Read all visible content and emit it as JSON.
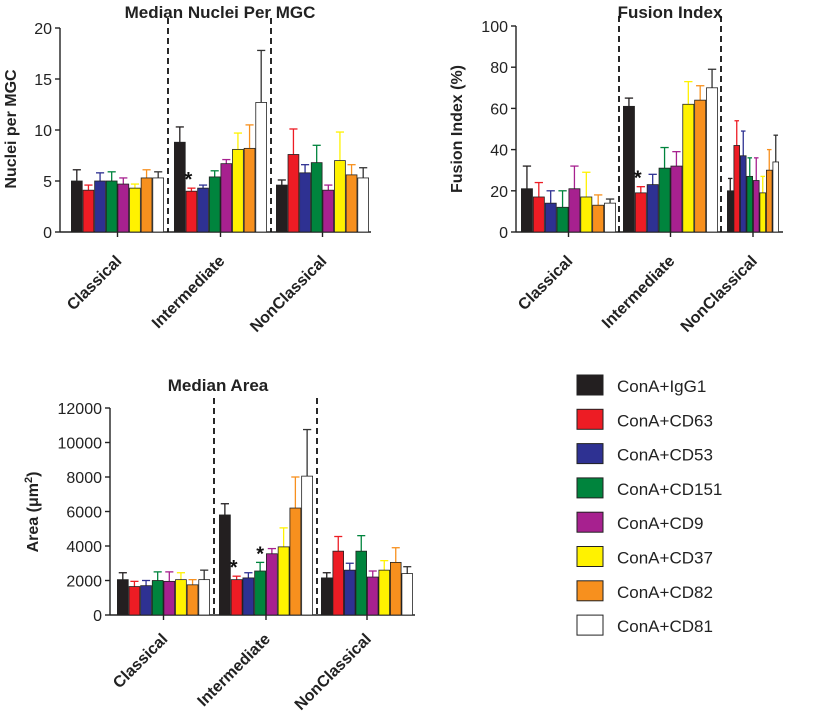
{
  "chart_data": [
    {
      "type": "bar",
      "title": "Median Nuclei Per MGC",
      "xlabel": "",
      "ylabel": "Nuclei per MGC",
      "ylim": [
        0,
        20
      ],
      "yticks": [
        "0",
        "5",
        "10",
        "15",
        "20"
      ],
      "categories": [
        "Classical",
        "Intermediate",
        "NonClassical"
      ],
      "series": [
        {
          "name": "ConA+IgG1",
          "values": [
            5.0,
            8.8,
            4.6
          ],
          "errors": [
            1.1,
            1.5,
            0.5
          ]
        },
        {
          "name": "ConA+CD63",
          "values": [
            4.1,
            4.0,
            7.6
          ],
          "errors": [
            0.5,
            0.3,
            2.5
          ]
        },
        {
          "name": "ConA+CD53",
          "values": [
            5.0,
            4.3,
            5.8
          ],
          "errors": [
            0.8,
            0.3,
            0.8
          ]
        },
        {
          "name": "ConA+CD151",
          "values": [
            5.0,
            5.4,
            6.8
          ],
          "errors": [
            0.9,
            0.6,
            1.7
          ]
        },
        {
          "name": "ConA+CD9",
          "values": [
            4.7,
            6.7,
            4.1
          ],
          "errors": [
            0.6,
            0.4,
            0.5
          ]
        },
        {
          "name": "ConA+CD37",
          "values": [
            4.3,
            8.1,
            7.0
          ],
          "errors": [
            0.4,
            1.6,
            2.8
          ]
        },
        {
          "name": "ConA+CD82",
          "values": [
            5.3,
            8.2,
            5.6
          ],
          "errors": [
            0.8,
            2.3,
            1.0
          ]
        },
        {
          "name": "ConA+CD81",
          "values": [
            5.3,
            12.7,
            5.3
          ],
          "errors": [
            0.6,
            5.1,
            1.0
          ]
        }
      ],
      "annotations": [
        {
          "text": "*",
          "category": "Intermediate",
          "series": "ConA+CD63"
        }
      ]
    },
    {
      "type": "bar",
      "title": "Fusion Index",
      "xlabel": "",
      "ylabel": "Fusion Index  (%)",
      "ylim": [
        0,
        100
      ],
      "yticks": [
        "0",
        "20",
        "40",
        "60",
        "80",
        "100"
      ],
      "categories": [
        "Classical",
        "Intermediate",
        "NonClassical"
      ],
      "series": [
        {
          "name": "ConA+IgG1",
          "values": [
            21,
            61,
            20
          ],
          "errors": [
            11,
            4,
            6
          ]
        },
        {
          "name": "ConA+CD63",
          "values": [
            17,
            19,
            42
          ],
          "errors": [
            7,
            3,
            12
          ]
        },
        {
          "name": "ConA+CD53",
          "values": [
            14,
            23,
            37
          ],
          "errors": [
            6,
            5,
            12
          ]
        },
        {
          "name": "ConA+CD151",
          "values": [
            12,
            31,
            27
          ],
          "errors": [
            8,
            10,
            9
          ]
        },
        {
          "name": "ConA+CD9",
          "values": [
            21,
            32,
            25
          ],
          "errors": [
            11,
            7,
            11
          ]
        },
        {
          "name": "ConA+CD37",
          "values": [
            17,
            62,
            19
          ],
          "errors": [
            12,
            11,
            8
          ]
        },
        {
          "name": "ConA+CD82",
          "values": [
            13,
            64,
            30
          ],
          "errors": [
            5,
            7,
            10
          ]
        },
        {
          "name": "ConA+CD81",
          "values": [
            14,
            70,
            34
          ],
          "errors": [
            2,
            9,
            13
          ]
        }
      ],
      "annotations": [
        {
          "text": "*",
          "category": "Intermediate",
          "series": "ConA+CD63"
        }
      ]
    },
    {
      "type": "bar",
      "title": "Median Area",
      "xlabel": "",
      "ylabel": "Area (μm²)",
      "ylabel_text": "Area (μm",
      "ylabel_sup": "2",
      "ylabel_close": ")",
      "ylim": [
        0,
        12000
      ],
      "yticks": [
        "0",
        "2000",
        "4000",
        "6000",
        "8000",
        "10000",
        "12000"
      ],
      "categories": [
        "Classical",
        "Intermediate",
        "NonClassical"
      ],
      "series": [
        {
          "name": "ConA+IgG1",
          "values": [
            2050,
            5800,
            2150
          ],
          "errors": [
            400,
            650,
            300
          ]
        },
        {
          "name": "ConA+CD63",
          "values": [
            1650,
            2050,
            3700
          ],
          "errors": [
            300,
            200,
            850
          ]
        },
        {
          "name": "ConA+CD53",
          "values": [
            1700,
            2150,
            2600
          ],
          "errors": [
            300,
            300,
            400
          ]
        },
        {
          "name": "ConA+CD151",
          "values": [
            2000,
            2550,
            3700
          ],
          "errors": [
            500,
            500,
            900
          ]
        },
        {
          "name": "ConA+CD9",
          "values": [
            1950,
            3550,
            2200
          ],
          "errors": [
            550,
            300,
            350
          ]
        },
        {
          "name": "ConA+CD37",
          "values": [
            2050,
            3950,
            2600
          ],
          "errors": [
            400,
            1100,
            550
          ]
        },
        {
          "name": "ConA+CD82",
          "values": [
            1750,
            6200,
            3050
          ],
          "errors": [
            300,
            1800,
            850
          ]
        },
        {
          "name": "ConA+CD81",
          "values": [
            2050,
            8050,
            2400
          ],
          "errors": [
            550,
            2700,
            400
          ]
        }
      ],
      "annotations": [
        {
          "text": "*",
          "category": "Intermediate",
          "series": "ConA+CD63"
        },
        {
          "text": "*",
          "category": "Intermediate",
          "series": "ConA+CD151"
        }
      ]
    }
  ],
  "legend": {
    "placement": "bottom-right",
    "entries": [
      {
        "label": "ConA+IgG1",
        "color": "#231f20"
      },
      {
        "label": "ConA+CD63",
        "color": "#ed1c24"
      },
      {
        "label": "ConA+CD53",
        "color": "#2e3192"
      },
      {
        "label": "ConA+CD151",
        "color": "#00843d"
      },
      {
        "label": "ConA+CD9",
        "color": "#a7218f"
      },
      {
        "label": "ConA+CD37",
        "color": "#fff200"
      },
      {
        "label": "ConA+CD82",
        "color": "#f7901e"
      },
      {
        "label": "ConA+CD81",
        "color": "#ffffff"
      }
    ]
  }
}
